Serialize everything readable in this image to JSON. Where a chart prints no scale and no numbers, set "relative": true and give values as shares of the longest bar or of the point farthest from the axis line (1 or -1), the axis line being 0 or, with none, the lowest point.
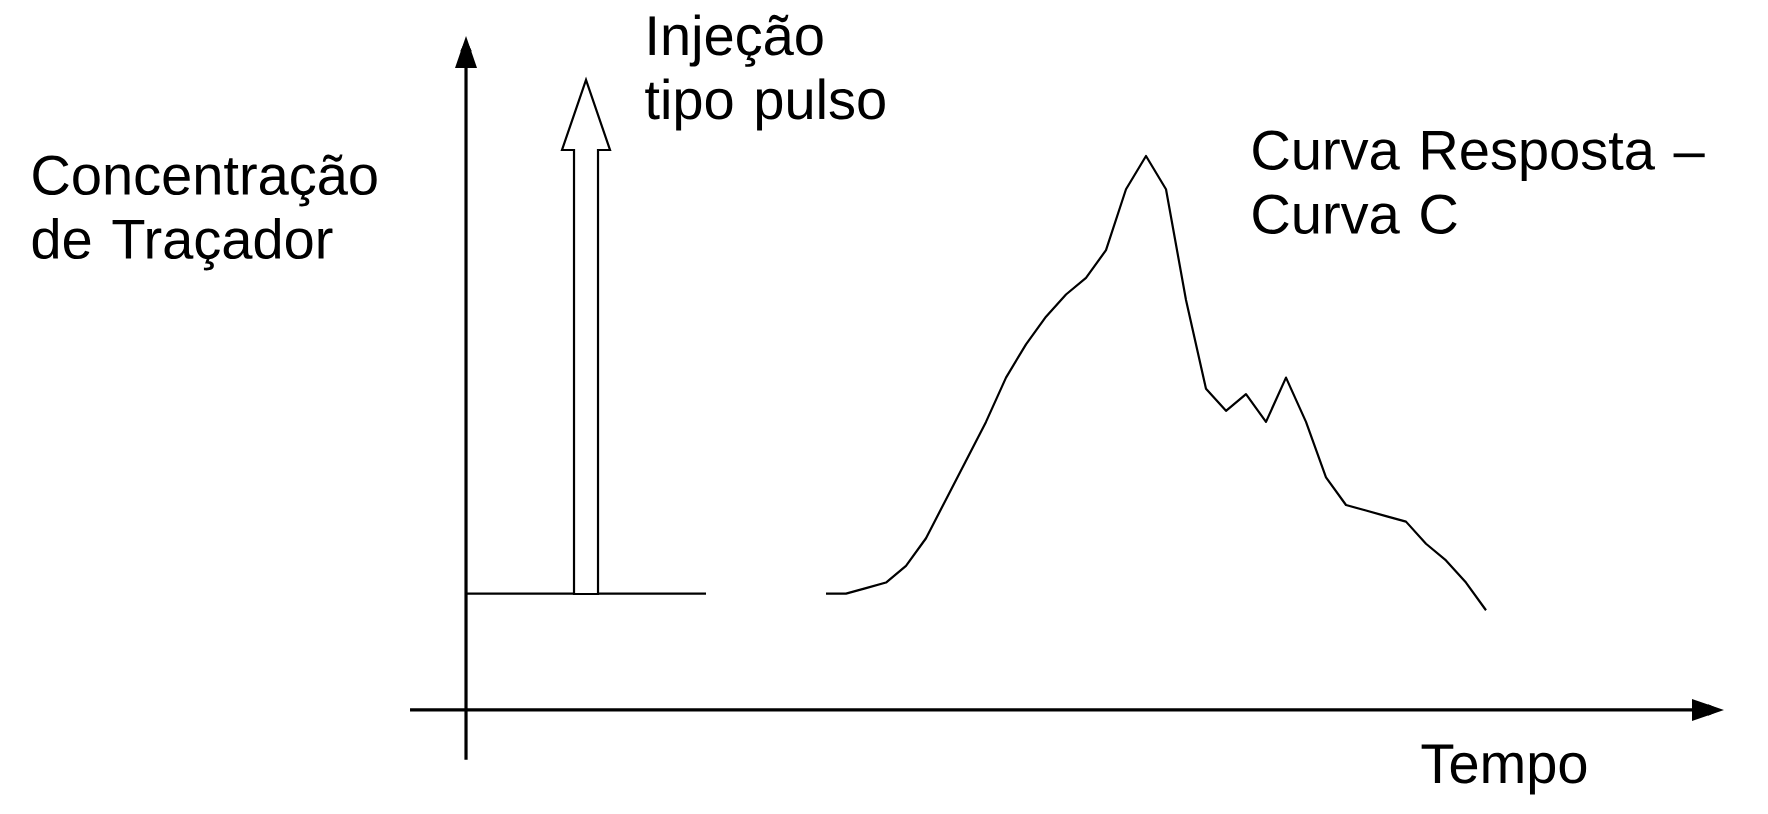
{
  "chart_data": {
    "type": "line",
    "relative": true,
    "xlabel": "Tempo",
    "ylabel": "Concentração de Traçador",
    "annotations": [
      "Injeção tipo pulso",
      "Curva Resposta – Curva C"
    ],
    "categories": [
      null,
      null,
      null,
      null,
      null,
      null,
      null,
      null,
      null,
      null,
      null,
      null,
      null,
      null,
      null,
      null,
      null,
      null,
      null,
      null,
      null,
      null,
      null,
      null,
      null,
      null,
      null,
      null,
      null,
      null,
      null,
      null,
      null,
      null,
      null,
      null,
      null,
      null,
      null,
      null,
      null,
      null,
      null,
      null,
      null,
      null,
      null,
      null,
      null,
      null,
      null,
      null
    ],
    "series": [
      {
        "color": "#000000",
        "values": [
          0.21,
          0.21,
          0.21,
          0.21,
          0.21,
          0.21,
          0.21,
          0.21,
          0.21,
          0.21,
          0.21,
          0.21,
          0.21,
          null,
          null,
          null,
          null,
          null,
          null,
          null,
          null,
          null,
          null,
          null,
          null,
          null,
          null,
          null,
          null,
          null,
          null,
          null,
          null,
          null,
          null,
          null,
          null,
          null,
          null,
          null,
          null,
          null,
          null,
          null,
          null,
          null,
          null,
          null,
          null,
          null,
          null,
          null
        ]
      },
      {
        "color": "#000000",
        "values": [
          null,
          null,
          null,
          null,
          null,
          null,
          null,
          null,
          null,
          null,
          null,
          null,
          null,
          null,
          null,
          null,
          null,
          null,
          0.21,
          0.21,
          0.22,
          0.23,
          0.26,
          0.31,
          0.38,
          0.45,
          0.52,
          0.6,
          0.66,
          0.71,
          0.75,
          0.78,
          0.83,
          0.94,
          1,
          0.94,
          0.74,
          0.58,
          0.54,
          0.57,
          0.52,
          0.6,
          0.52,
          0.42,
          0.37,
          0.36,
          0.35,
          0.34,
          0.3,
          0.27,
          0.23,
          0.18
        ]
      }
    ]
  }
}
